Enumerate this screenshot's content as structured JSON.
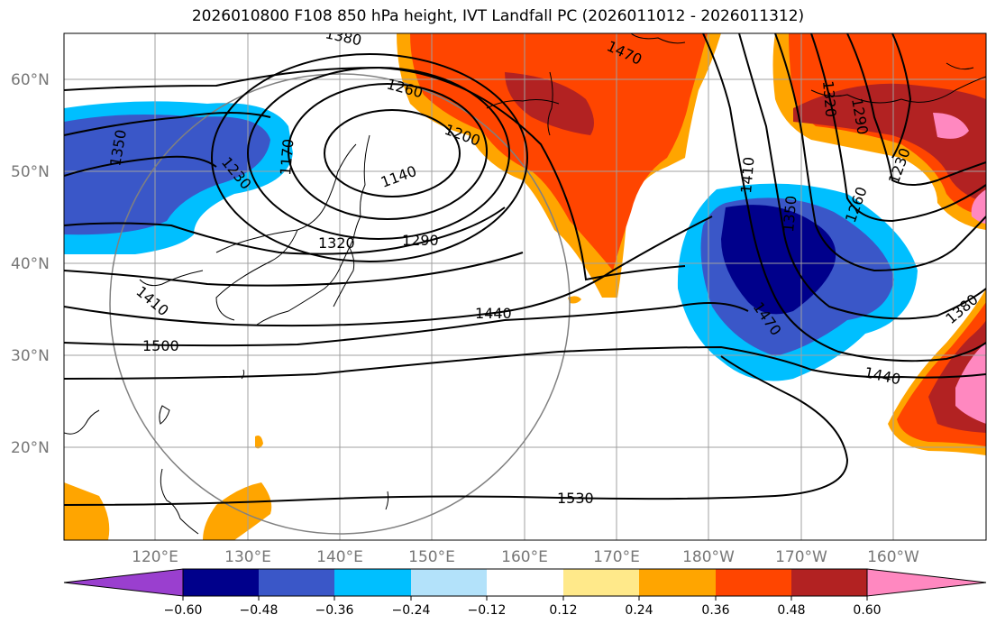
{
  "title": "2026010800 F108 850 hPa height, IVT Landfall PC (2026011012 - 2026011312)",
  "lat_labels": [
    "60°N",
    "50°N",
    "40°N",
    "30°N",
    "20°N"
  ],
  "lon_labels": [
    "120°E",
    "130°E",
    "140°E",
    "150°E",
    "160°E",
    "170°E",
    "180°W",
    "170°W",
    "160°W"
  ],
  "contour_labels": [
    "1470",
    "1260",
    "1200",
    "1350",
    "1170",
    "1140",
    "1230",
    "1320",
    "1290",
    "1440",
    "1500",
    "1530",
    "1410",
    "1350",
    "1260",
    "1230",
    "1320",
    "1290",
    "1470",
    "1440",
    "1380",
    "1410",
    "1380"
  ],
  "colorbar": {
    "ticks": [
      "−0.60",
      "−0.48",
      "−0.36",
      "−0.24",
      "−0.12",
      "0.12",
      "0.24",
      "0.36",
      "0.48",
      "0.60"
    ],
    "colors": [
      "#9a3fcf",
      "#00008b",
      "#3a57c8",
      "#00bfff",
      "#b3e2fa",
      "#ffffff",
      "#ffe98a",
      "#ffa500",
      "#ff4500",
      "#b22222",
      "#ff88c0"
    ]
  }
}
